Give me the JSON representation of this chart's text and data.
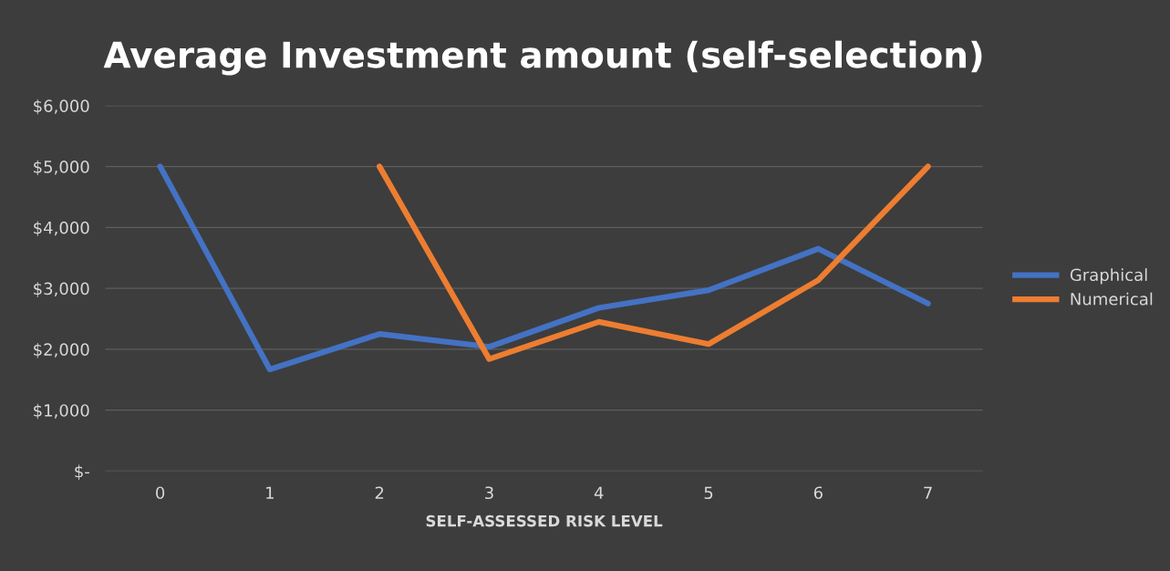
{
  "chart_data": {
    "type": "line",
    "title": "Average Investment amount (self-selection)",
    "xlabel": "SELF-ASSESSED RISK LEVEL",
    "categories": [
      "0",
      "1",
      "2",
      "3",
      "4",
      "5",
      "6",
      "7"
    ],
    "series": [
      {
        "name": "Graphical",
        "color": "#4472c4",
        "values": [
          5000,
          1670,
          2250,
          2040,
          2680,
          2970,
          3650,
          2750
        ]
      },
      {
        "name": "Numerical",
        "color": "#ed7d31",
        "values": [
          null,
          null,
          5000,
          1840,
          2450,
          2085,
          3135,
          5000
        ]
      }
    ],
    "ylim": [
      0,
      6000
    ],
    "yticks": [
      {
        "value": 0,
        "label": "$-"
      },
      {
        "value": 1000,
        "label": "$1,000"
      },
      {
        "value": 2000,
        "label": "$2,000"
      },
      {
        "value": 3000,
        "label": "$3,000"
      },
      {
        "value": 4000,
        "label": "$4,000"
      },
      {
        "value": 5000,
        "label": "$5,000"
      },
      {
        "value": 6000,
        "label": "$6,000"
      }
    ],
    "grid": "y",
    "legend": "right",
    "marker": "none",
    "line_style": "solid"
  }
}
